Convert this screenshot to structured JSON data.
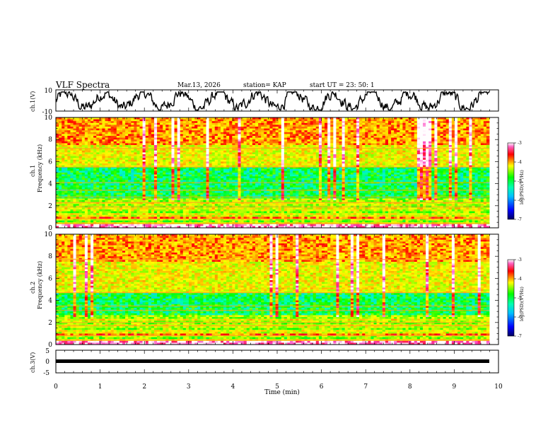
{
  "header": {
    "title": "VLF Spectra",
    "date": "Mar.13, 2026",
    "station": "station= KAP",
    "start_ut": "start  UT  =   23: 50: 1"
  },
  "colors": {
    "spectro_stops": [
      "#000080",
      "#0000ff",
      "#00b0ff",
      "#00ffc0",
      "#00ff00",
      "#90ff00",
      "#ffff00",
      "#ffb000",
      "#ff0000",
      "#ff40c0",
      "#ffffff"
    ]
  },
  "chart_data": [
    {
      "type": "line",
      "name": "ch1-waveform",
      "ylabel": "ch.1(V)",
      "ylim": [
        -10,
        10
      ],
      "yticklabels": [
        "10",
        "-10"
      ],
      "xlim": [
        0,
        10
      ],
      "description_series": "noisy waveform oscillating roughly between -8 and +7 V over 0-9.8 min"
    },
    {
      "type": "heatmap",
      "name": "ch1-spectrogram",
      "ylabel": "Frequency (kHz)",
      "panel_label": "ch.1",
      "ylim": [
        0,
        10
      ],
      "yticklabels": [
        "0",
        "2",
        "4",
        "6",
        "8",
        "10"
      ],
      "xlim": [
        0,
        10
      ],
      "colorbar": {
        "label": "log(PSD)(V²/Hz)",
        "range": [
          -7,
          -3
        ],
        "ticklabels": [
          "-3",
          "-4",
          "-5",
          "-6",
          "-7"
        ]
      }
    },
    {
      "type": "heatmap",
      "name": "ch2-spectrogram",
      "ylabel": "Frequency (kHz)",
      "panel_label": "ch.2",
      "ylim": [
        0,
        10
      ],
      "yticklabels": [
        "0",
        "2",
        "4",
        "6",
        "8",
        "10"
      ],
      "xlim": [
        0,
        10
      ],
      "colorbar": {
        "label": "log(PSD)(V²/Hz)",
        "range": [
          -7,
          -3
        ],
        "ticklabels": [
          "-3",
          "-4",
          "-5",
          "-6",
          "-7"
        ]
      }
    },
    {
      "type": "line",
      "name": "ch3-signal",
      "ylabel": "ch.3(V)",
      "ylim": [
        -5,
        5
      ],
      "yticklabels": [
        "5",
        "0",
        "-5"
      ],
      "xlim": [
        0,
        10
      ],
      "description_series": "thick flat line near 0 V across 0-9.8 min"
    }
  ],
  "xaxis": {
    "label": "Time  (min)",
    "ticklabels": [
      "0",
      "1",
      "2",
      "3",
      "4",
      "5",
      "6",
      "7",
      "8",
      "9",
      "10"
    ]
  }
}
